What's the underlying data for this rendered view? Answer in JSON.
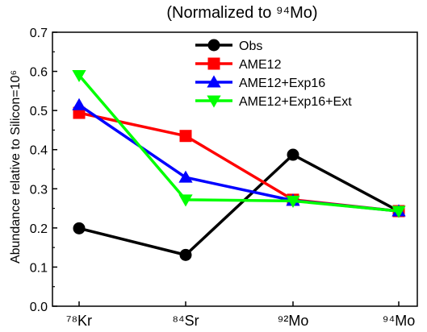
{
  "chart_data": {
    "type": "line",
    "title": "(Normalized to ⁹⁴Mo)",
    "ylabel": "Abundance relative to Silicon=10⁶",
    "xlabel": "",
    "categories": [
      "⁷⁸Kr",
      "⁸⁴Sr",
      "⁹²Mo",
      "⁹⁴Mo"
    ],
    "ylim": [
      0.0,
      0.7
    ],
    "yticks": [
      "0.0",
      "0.1",
      "0.2",
      "0.3",
      "0.4",
      "0.5",
      "0.6",
      "0.7"
    ],
    "grid": false,
    "legend_position": "top-right",
    "series": [
      {
        "name": "Obs",
        "color": "#000000",
        "marker": "circle",
        "values": [
          0.199,
          0.131,
          0.387,
          0.243
        ]
      },
      {
        "name": "AME12",
        "color": "#ff0000",
        "marker": "square",
        "values": [
          0.494,
          0.435,
          0.272,
          0.243
        ]
      },
      {
        "name": "AME12+Exp16",
        "color": "#0000ff",
        "marker": "triangle-up",
        "values": [
          0.514,
          0.329,
          0.27,
          0.243
        ]
      },
      {
        "name": "AME12+Exp16+Ext",
        "color": "#00ff00",
        "marker": "triangle-down",
        "values": [
          0.59,
          0.272,
          0.269,
          0.243
        ]
      }
    ]
  }
}
